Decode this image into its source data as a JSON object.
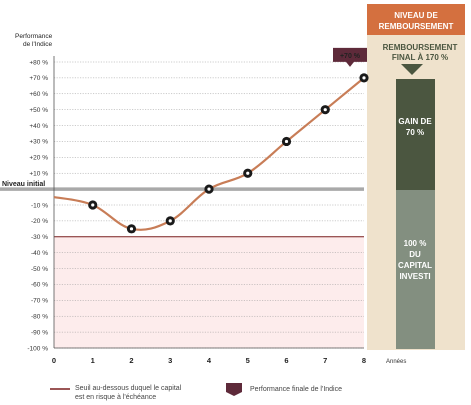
{
  "chart_data": {
    "type": "line",
    "ylabel": [
      "Performance",
      "de l'Indice"
    ],
    "xlabel": "Années",
    "x": [
      0,
      1,
      2,
      3,
      4,
      5,
      6,
      7,
      8
    ],
    "y": [
      -5,
      -10,
      -25,
      -20,
      0,
      10,
      30,
      50,
      70
    ],
    "ylim": [
      -100,
      80
    ],
    "yticks": [
      80,
      70,
      60,
      50,
      40,
      30,
      20,
      10,
      -10,
      -20,
      -30,
      -40,
      -50,
      -60,
      -70,
      -80,
      -90,
      -100
    ],
    "ytick_labels": [
      "+80 %",
      "+70 %",
      "+60 %",
      "+50 %",
      "+40 %",
      "+30 %",
      "+20 %",
      "+10 %",
      "-10 %",
      "-20 %",
      "-30 %",
      "-40 %",
      "-50 %",
      "-60 %",
      "-70 %",
      "-80 %",
      "-90 %",
      "-100 %"
    ],
    "initial_level_label": "Niveau initial",
    "initial_level_value": 0,
    "threshold_value": -30,
    "final_callout": "+70 %",
    "grid": true,
    "colors": {
      "curve": "#c87d57",
      "threshold": "#7a1f1f",
      "threshold_zone": "#fdecec",
      "initial_line": "#a9a9a9",
      "callout": "#5e2a3a",
      "panel_header": "#d4703f",
      "panel_bg": "#efe2cc",
      "gain_bar": "#4b5640",
      "capital_bar": "#838f80",
      "arrow": "#4b5640"
    }
  },
  "panel": {
    "header_line1": "NIVEAU DE",
    "header_line2": "REMBOURSEMENT",
    "final_line1": "REMBOURSEMENT",
    "final_line2": "FINAL À 170 %",
    "gain_line1": "GAIN DE",
    "gain_line2": "70 %",
    "capital_line1": "100 %",
    "capital_line2": "DU",
    "capital_line3": "CAPITAL",
    "capital_line4": "INVESTI"
  },
  "legend": {
    "threshold_line1": "Seuil au-dessous duquel le capital",
    "threshold_line2": "est en risque à l'échéance",
    "final_perf": "Performance finale de l'Indice"
  }
}
